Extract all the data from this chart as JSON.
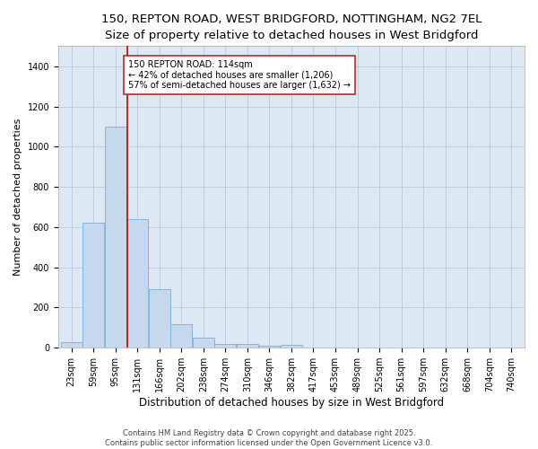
{
  "title_line1": "150, REPTON ROAD, WEST BRIDGFORD, NOTTINGHAM, NG2 7EL",
  "title_line2": "Size of property relative to detached houses in West Bridgford",
  "xlabel": "Distribution of detached houses by size in West Bridgford",
  "ylabel": "Number of detached properties",
  "bin_labels": [
    "23sqm",
    "59sqm",
    "95sqm",
    "131sqm",
    "166sqm",
    "202sqm",
    "238sqm",
    "274sqm",
    "310sqm",
    "346sqm",
    "382sqm",
    "417sqm",
    "453sqm",
    "489sqm",
    "525sqm",
    "561sqm",
    "597sqm",
    "632sqm",
    "668sqm",
    "704sqm",
    "740sqm"
  ],
  "bar_values": [
    30,
    620,
    1100,
    640,
    290,
    115,
    50,
    20,
    20,
    10,
    15,
    0,
    0,
    0,
    0,
    0,
    0,
    0,
    0,
    0,
    0
  ],
  "bar_color": "#c5d8ee",
  "bar_edge_color": "#7aaed6",
  "background_color": "#dde8f5",
  "grid_color": "#b8c8dc",
  "red_line_value": 114,
  "annotation_line1": "150 REPTON ROAD: 114sqm",
  "annotation_line2": "← 42% of detached houses are smaller (1,206)",
  "annotation_line3": "57% of semi-detached houses are larger (1,632) →",
  "annotation_box_color": "#ffffff",
  "annotation_box_edge": "#cc2222",
  "ylim": [
    0,
    1500
  ],
  "yticks": [
    0,
    200,
    400,
    600,
    800,
    1000,
    1200,
    1400
  ],
  "footer_text": "Contains HM Land Registry data © Crown copyright and database right 2025.\nContains public sector information licensed under the Open Government Licence v3.0.",
  "title_fontsize": 9.5,
  "subtitle_fontsize": 8.5,
  "ylabel_fontsize": 8,
  "xlabel_fontsize": 8.5,
  "tick_fontsize": 7,
  "annotation_fontsize": 7,
  "footer_fontsize": 6
}
